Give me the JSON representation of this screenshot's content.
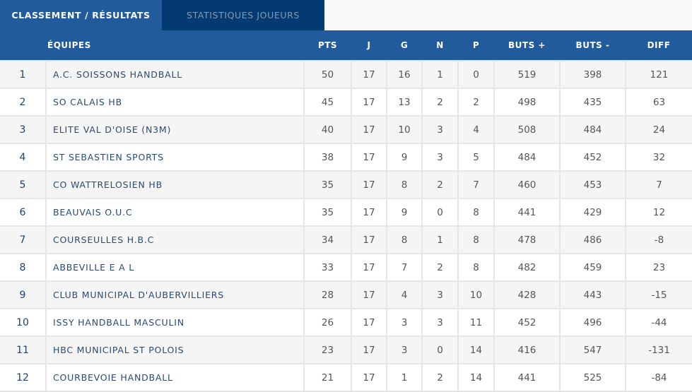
{
  "tabs": [
    {
      "label": "CLASSEMENT / RÉSULTATS",
      "active": true
    },
    {
      "label": "STATISTIQUES JOUEURS",
      "active": false
    }
  ],
  "colors": {
    "header": "#225b9b",
    "tab_inactive": "#033a72"
  },
  "headers": [
    "",
    "ÉQUIPES",
    "PTS",
    "J",
    "G",
    "N",
    "P",
    "BUTS +",
    "BUTS -",
    "DIFF"
  ],
  "rows": [
    [
      "1",
      "A.C. SOISSONS HANDBALL",
      "50",
      "17",
      "16",
      "1",
      "0",
      "519",
      "398",
      "121"
    ],
    [
      "2",
      "SO CALAIS HB",
      "45",
      "17",
      "13",
      "2",
      "2",
      "498",
      "435",
      "63"
    ],
    [
      "3",
      "ELITE VAL D'OISE (N3M)",
      "40",
      "17",
      "10",
      "3",
      "4",
      "508",
      "484",
      "24"
    ],
    [
      "4",
      "ST SEBASTIEN SPORTS",
      "38",
      "17",
      "9",
      "3",
      "5",
      "484",
      "452",
      "32"
    ],
    [
      "5",
      "CO WATTRELOSIEN HB",
      "35",
      "17",
      "8",
      "2",
      "7",
      "460",
      "453",
      "7"
    ],
    [
      "6",
      "BEAUVAIS O.U.C",
      "35",
      "17",
      "9",
      "0",
      "8",
      "441",
      "429",
      "12"
    ],
    [
      "7",
      "COURSEULLES H.B.C",
      "34",
      "17",
      "8",
      "1",
      "8",
      "478",
      "486",
      "-8"
    ],
    [
      "8",
      "ABBEVILLE E A L",
      "33",
      "17",
      "7",
      "2",
      "8",
      "482",
      "459",
      "23"
    ],
    [
      "9",
      "CLUB MUNICIPAL D'AUBERVILLIERS",
      "28",
      "17",
      "4",
      "3",
      "10",
      "428",
      "443",
      "-15"
    ],
    [
      "10",
      "ISSY HANDBALL MASCULIN",
      "26",
      "17",
      "3",
      "3",
      "11",
      "452",
      "496",
      "-44"
    ],
    [
      "11",
      "HBC MUNICIPAL ST POLOIS",
      "23",
      "17",
      "3",
      "0",
      "14",
      "416",
      "547",
      "-131"
    ],
    [
      "12",
      "COURBEVOIE HANDBALL",
      "21",
      "17",
      "1",
      "2",
      "14",
      "441",
      "525",
      "-84"
    ]
  ]
}
